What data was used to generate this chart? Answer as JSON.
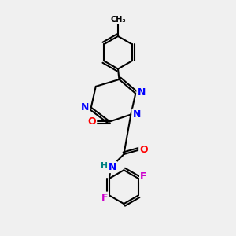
{
  "bg_color": "#f0f0f0",
  "bond_color": "#000000",
  "atom_colors": {
    "N": "#0000ff",
    "O": "#ff0000",
    "F": "#cc00cc",
    "C": "#000000",
    "H": "#008080"
  },
  "font_size_atom": 9,
  "font_size_label": 8,
  "title": ""
}
